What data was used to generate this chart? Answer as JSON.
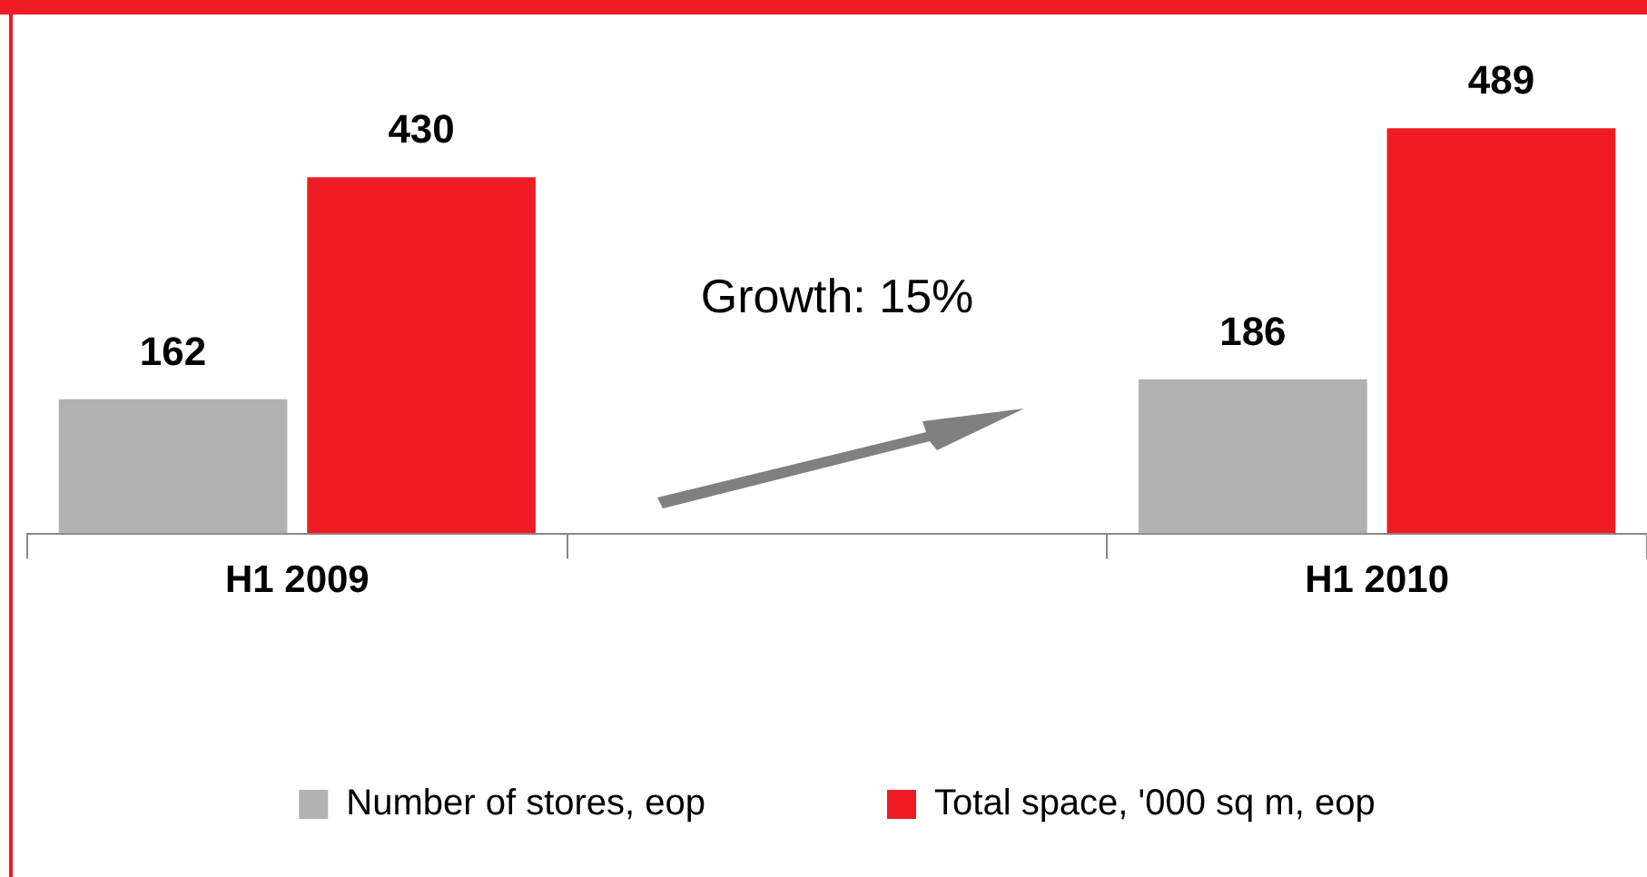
{
  "chart_data": {
    "type": "bar",
    "categories": [
      "H1 2009",
      null,
      "H1 2010"
    ],
    "series": [
      {
        "name": "Number of stores, eop",
        "color": "#b2b2b2",
        "values": [
          162,
          null,
          186
        ]
      },
      {
        "name": "Total space, '000 sq m, eop",
        "color": "#ee1c25",
        "values": [
          430,
          null,
          489
        ]
      }
    ],
    "data_labels": true,
    "legend": "bottom",
    "annotations": [
      "Growth: 15%"
    ]
  }
}
